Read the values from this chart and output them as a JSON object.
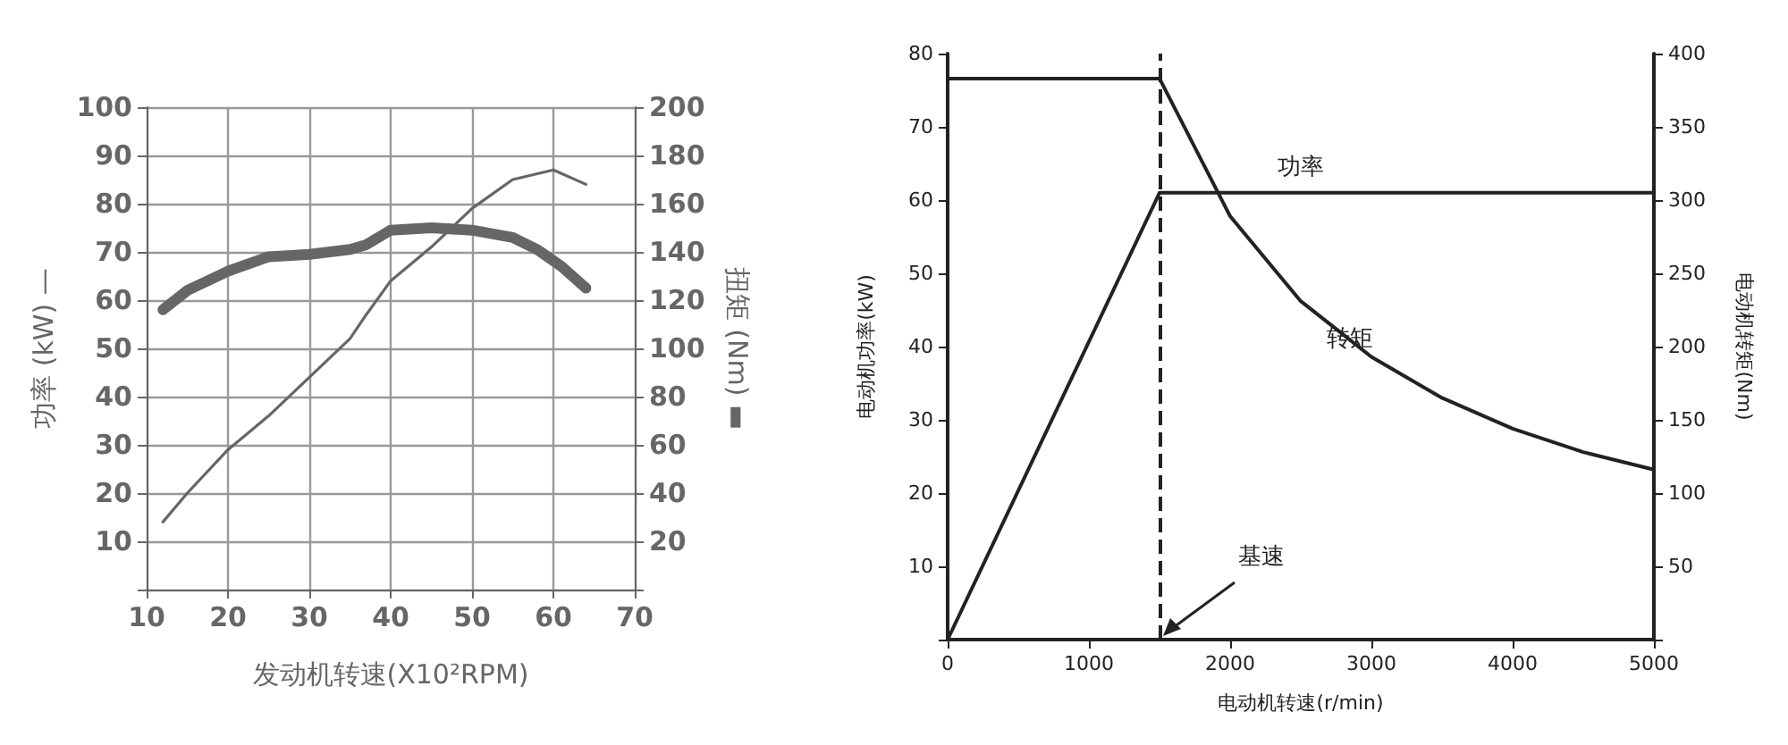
{
  "chart_data": [
    {
      "type": "line",
      "xlabel": "发动机转速(X10²RPM)",
      "ylabel": "功率 (kW) —",
      "y2label": "扭矩 (Nm) ▬",
      "xlim": [
        10,
        70
      ],
      "xticks": [
        10,
        20,
        30,
        40,
        50,
        60,
        70
      ],
      "ylim": [
        0,
        100
      ],
      "yticks": [
        {
          "value": 0,
          "label": null
        },
        10,
        20,
        30,
        40,
        50,
        60,
        70,
        80,
        90,
        100
      ],
      "y2lim": [
        0,
        200
      ],
      "y2ticks": [
        {
          "value": 0,
          "label": null
        },
        20,
        40,
        60,
        80,
        100,
        120,
        140,
        160,
        180,
        200
      ],
      "grid": true,
      "marker": "none",
      "line_style": "solid",
      "series": [
        {
          "color": "#666666",
          "x": [
            12,
            15,
            20,
            25,
            30,
            35,
            37,
            40,
            45,
            50,
            55,
            60,
            64
          ],
          "values": [
            14,
            20,
            29,
            36,
            44,
            52,
            57,
            64,
            71,
            79,
            85,
            87,
            84
          ]
        },
        {
          "color": "#666666",
          "axis": "y2",
          "x": [
            12,
            15,
            20,
            25,
            30,
            35,
            37,
            40,
            45,
            50,
            55,
            58,
            61,
            64
          ],
          "values": [
            116,
            124,
            132,
            138,
            139,
            141,
            143,
            149,
            150,
            149,
            146,
            141,
            134,
            125
          ]
        }
      ]
    },
    {
      "type": "line",
      "xlabel": "电动机转速(r/min)",
      "ylabel": "电动机功率(kW)",
      "y2label": "电动机转矩(Nm)",
      "xlim": [
        0,
        5000
      ],
      "xticks": [
        0,
        1000,
        2000,
        3000,
        4000,
        5000
      ],
      "ylim": [
        0,
        80
      ],
      "yticks": [
        {
          "value": 0,
          "label": null
        },
        10,
        20,
        30,
        40,
        50,
        60,
        70,
        80
      ],
      "y2lim": [
        0,
        400
      ],
      "y2ticks": [
        {
          "value": 0,
          "label": null
        },
        50,
        100,
        150,
        200,
        250,
        300,
        350,
        400
      ],
      "grid": false,
      "marker": "none",
      "line_style": "solid",
      "series": [
        {
          "color": "#222222",
          "x": [
            0,
            1500,
            5000
          ],
          "values": [
            0,
            61,
            61
          ]
        },
        {
          "color": "#222222",
          "axis": "y2",
          "x": [
            0,
            1500,
            2000,
            2500,
            3000,
            3500,
            4000,
            4500,
            5000
          ],
          "values": [
            383,
            383,
            289,
            231,
            193,
            165,
            144,
            128,
            116
          ]
        }
      ],
      "ref_lines": [
        {
          "axis": "x",
          "value": 1500,
          "line_style": "dashed",
          "color": "#222222"
        }
      ],
      "annotations": [
        {
          "text": "功率",
          "x": 2500,
          "y": 61
        },
        {
          "text": "转矩",
          "x": 2850,
          "y": 41
        },
        {
          "text": "基速",
          "x": 1500,
          "y": 0
        }
      ]
    }
  ]
}
